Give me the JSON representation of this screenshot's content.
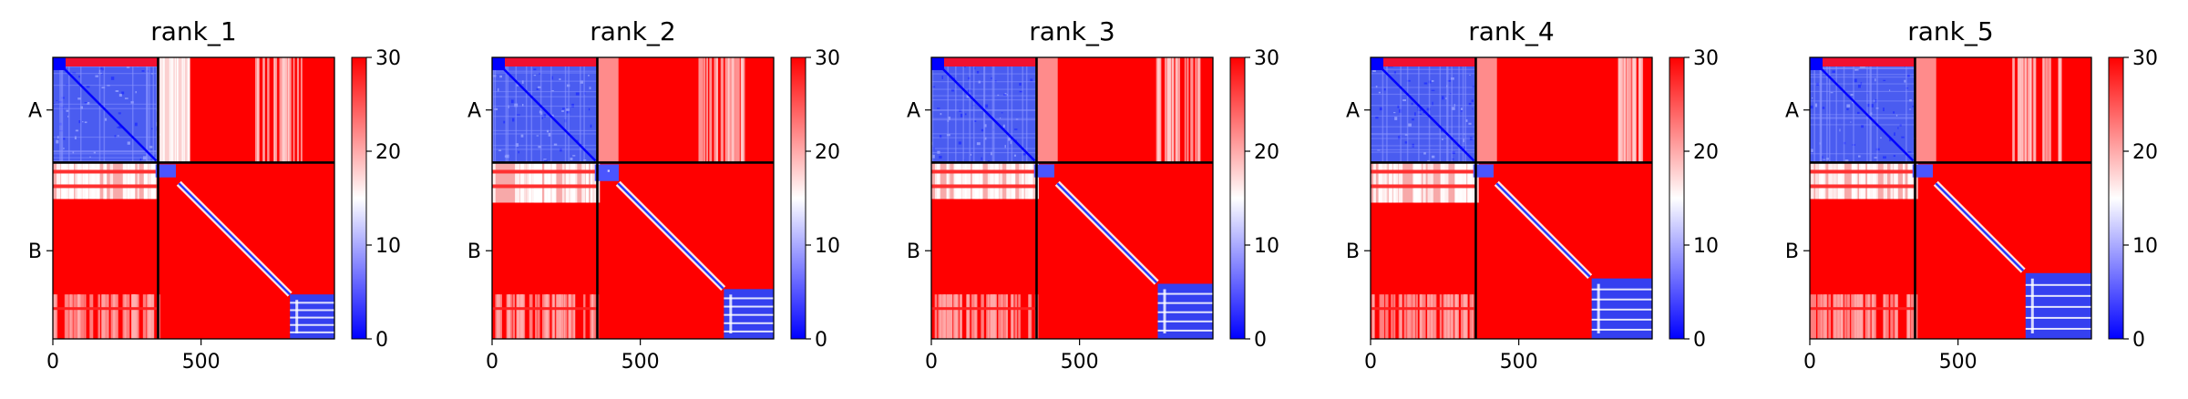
{
  "chart_data": [
    {
      "type": "heatmap",
      "title": "rank_1",
      "xticks": [
        0,
        500
      ],
      "xlim": [
        0,
        950
      ],
      "chain_labels": [
        "A",
        "B"
      ],
      "chain_boundary": 355,
      "colorbar": {
        "ticks": [
          0,
          10,
          20,
          30
        ],
        "range": [
          0,
          30
        ],
        "colormap": "bwr",
        "colors": [
          "#0000ff",
          "#ffffff",
          "#ff0000"
        ]
      },
      "variant": 0
    },
    {
      "type": "heatmap",
      "title": "rank_2",
      "xticks": [
        0,
        500
      ],
      "xlim": [
        0,
        950
      ],
      "chain_labels": [
        "A",
        "B"
      ],
      "chain_boundary": 355,
      "colorbar": {
        "ticks": [
          0,
          10,
          20,
          30
        ],
        "range": [
          0,
          30
        ],
        "colormap": "bwr",
        "colors": [
          "#0000ff",
          "#ffffff",
          "#ff0000"
        ]
      },
      "variant": 1
    },
    {
      "type": "heatmap",
      "title": "rank_3",
      "xticks": [
        0,
        500
      ],
      "xlim": [
        0,
        950
      ],
      "chain_labels": [
        "A",
        "B"
      ],
      "chain_boundary": 355,
      "colorbar": {
        "ticks": [
          0,
          10,
          20,
          30
        ],
        "range": [
          0,
          30
        ],
        "colormap": "bwr",
        "colors": [
          "#0000ff",
          "#ffffff",
          "#ff0000"
        ]
      },
      "variant": 2
    },
    {
      "type": "heatmap",
      "title": "rank_4",
      "xticks": [
        0,
        500
      ],
      "xlim": [
        0,
        950
      ],
      "chain_labels": [
        "A",
        "B"
      ],
      "chain_boundary": 355,
      "colorbar": {
        "ticks": [
          0,
          10,
          20,
          30
        ],
        "range": [
          0,
          30
        ],
        "colormap": "bwr",
        "colors": [
          "#0000ff",
          "#ffffff",
          "#ff0000"
        ]
      },
      "variant": 3
    },
    {
      "type": "heatmap",
      "title": "rank_5",
      "xticks": [
        0,
        500
      ],
      "xlim": [
        0,
        950
      ],
      "chain_labels": [
        "A",
        "B"
      ],
      "chain_boundary": 355,
      "colorbar": {
        "ticks": [
          0,
          10,
          20,
          30
        ],
        "range": [
          0,
          30
        ],
        "colormap": "bwr",
        "colors": [
          "#0000ff",
          "#ffffff",
          "#ff0000"
        ]
      },
      "variant": 4
    }
  ]
}
